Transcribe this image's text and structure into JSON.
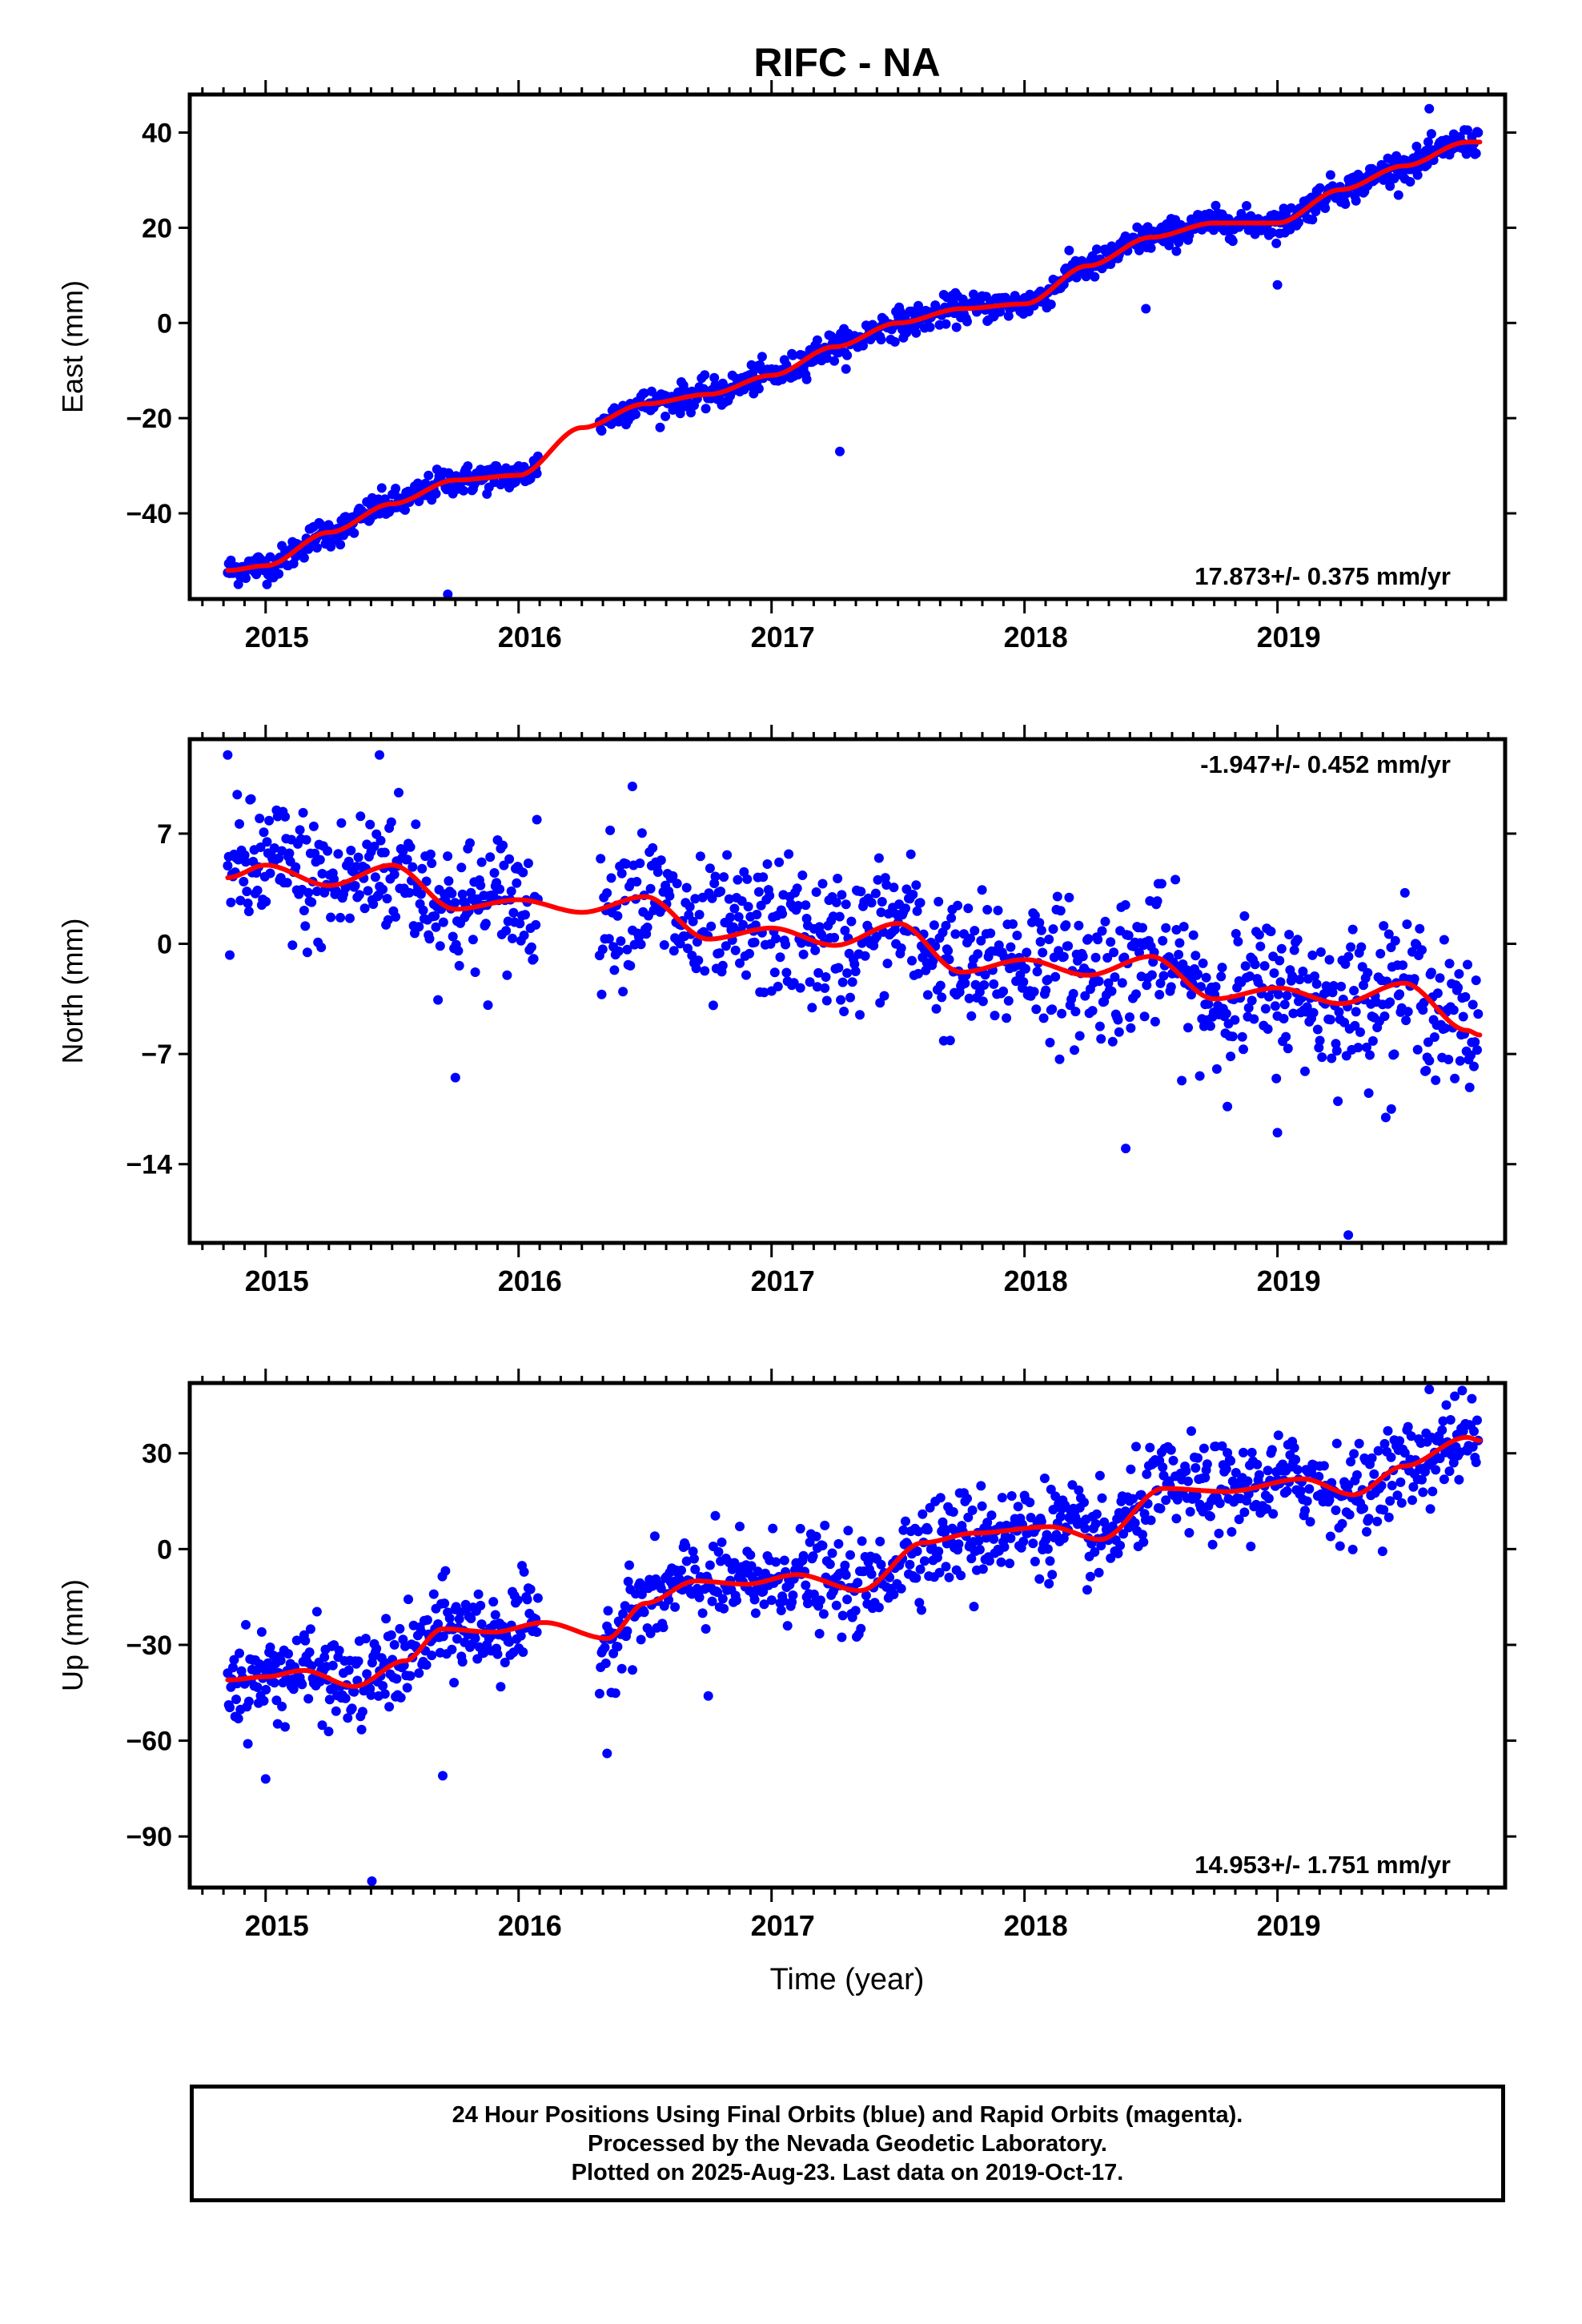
{
  "title": "RIFC - NA",
  "xlabel": "Time (year)",
  "colors": {
    "points": "#0000ff",
    "trend": "#ff0000",
    "axes": "#000000"
  },
  "caption": {
    "line1": "24 Hour Positions Using Final Orbits (blue) and Rapid Orbits (magenta).",
    "line2": "Processed by the Nevada Geodetic Laboratory.",
    "line3": "Plotted on 2025-Aug-23. Last data on 2019-Oct-17."
  },
  "chart_data": [
    {
      "type": "scatter",
      "ylabel": "East (mm)",
      "velocity": "17.873+/- 0.375 mm/yr",
      "velocity_position": "bottom-right",
      "xlim": [
        2014.7,
        2019.9
      ],
      "ylim": [
        -58,
        48
      ],
      "yticks": [
        -40,
        -20,
        0,
        20,
        40
      ],
      "xticks": [
        2015,
        2016,
        2017,
        2018,
        2019
      ],
      "trend": {
        "x": [
          2014.85,
          2015.0,
          2015.25,
          2015.5,
          2015.75,
          2016.0,
          2016.25,
          2016.5,
          2016.75,
          2017.0,
          2017.25,
          2017.5,
          2017.75,
          2018.0,
          2018.25,
          2018.5,
          2018.75,
          2019.0,
          2019.25,
          2019.5,
          2019.75,
          2019.8
        ],
        "y": [
          -52,
          -51,
          -44,
          -38,
          -33,
          -32,
          -22,
          -17,
          -15,
          -11,
          -5,
          0,
          3,
          4,
          12,
          18,
          21,
          21,
          28,
          33,
          38,
          38
        ]
      },
      "points": {
        "spread": 1.5,
        "outliers": [
          [
            2015.72,
            -57
          ],
          [
            2017.27,
            -27
          ],
          [
            2018.48,
            3
          ],
          [
            2019.0,
            8
          ],
          [
            2019.6,
            45
          ]
        ]
      }
    },
    {
      "type": "scatter",
      "ylabel": "North (mm)",
      "velocity": "-1.947+/- 0.452 mm/yr",
      "velocity_position": "top-right",
      "xlim": [
        2014.7,
        2019.9
      ],
      "ylim": [
        -19,
        13
      ],
      "yticks": [
        -14,
        -7,
        0,
        7
      ],
      "xticks": [
        2015,
        2016,
        2017,
        2018,
        2019
      ],
      "trend": {
        "x": [
          2014.85,
          2015.0,
          2015.25,
          2015.5,
          2015.75,
          2016.0,
          2016.25,
          2016.5,
          2016.75,
          2017.0,
          2017.25,
          2017.5,
          2017.75,
          2018.0,
          2018.25,
          2018.5,
          2018.75,
          2019.0,
          2019.25,
          2019.5,
          2019.75,
          2019.8
        ],
        "y": [
          4.2,
          5.0,
          3.7,
          5.0,
          2.2,
          2.8,
          2.0,
          3.0,
          0.3,
          1.0,
          -0.1,
          1.3,
          -1.8,
          -1.0,
          -2.0,
          -0.8,
          -3.5,
          -2.8,
          -3.8,
          -2.5,
          -5.5,
          -5.8
        ]
      },
      "points": {
        "spread": 2.2,
        "outliers": [
          [
            2014.85,
            12
          ],
          [
            2015.45,
            12
          ],
          [
            2016.45,
            10
          ],
          [
            2015.75,
            -8.5
          ],
          [
            2018.4,
            -13
          ],
          [
            2019.0,
            -12
          ],
          [
            2019.28,
            -18.5
          ],
          [
            2019.45,
            -10.5
          ]
        ]
      }
    },
    {
      "type": "scatter",
      "ylabel": "Up (mm)",
      "velocity": "14.953+/- 1.751 mm/yr",
      "velocity_position": "bottom-right",
      "xlim": [
        2014.7,
        2019.9
      ],
      "ylim": [
        -106,
        52
      ],
      "yticks": [
        -90,
        -60,
        -30,
        0,
        30
      ],
      "xticks": [
        2015,
        2016,
        2017,
        2018,
        2019
      ],
      "trend": {
        "x": [
          2014.85,
          2015.0,
          2015.15,
          2015.35,
          2015.55,
          2015.7,
          2015.9,
          2016.1,
          2016.35,
          2016.5,
          2016.7,
          2016.9,
          2017.1,
          2017.35,
          2017.6,
          2017.8,
          2018.1,
          2018.3,
          2018.55,
          2018.8,
          2019.1,
          2019.3,
          2019.5,
          2019.75,
          2019.8
        ],
        "y": [
          -41,
          -40,
          -38,
          -43,
          -35,
          -25,
          -26,
          -23,
          -28,
          -17,
          -10,
          -11,
          -8,
          -13,
          2,
          5,
          7,
          3,
          19,
          18,
          22,
          17,
          26,
          35,
          34
        ]
      },
      "points": {
        "spread": 7,
        "outliers": [
          [
            2015.0,
            -72
          ],
          [
            2015.7,
            -71
          ],
          [
            2015.42,
            -104
          ],
          [
            2016.35,
            -64
          ],
          [
            2016.75,
            -46
          ],
          [
            2017.8,
            -18
          ],
          [
            2019.6,
            50
          ]
        ]
      }
    }
  ]
}
